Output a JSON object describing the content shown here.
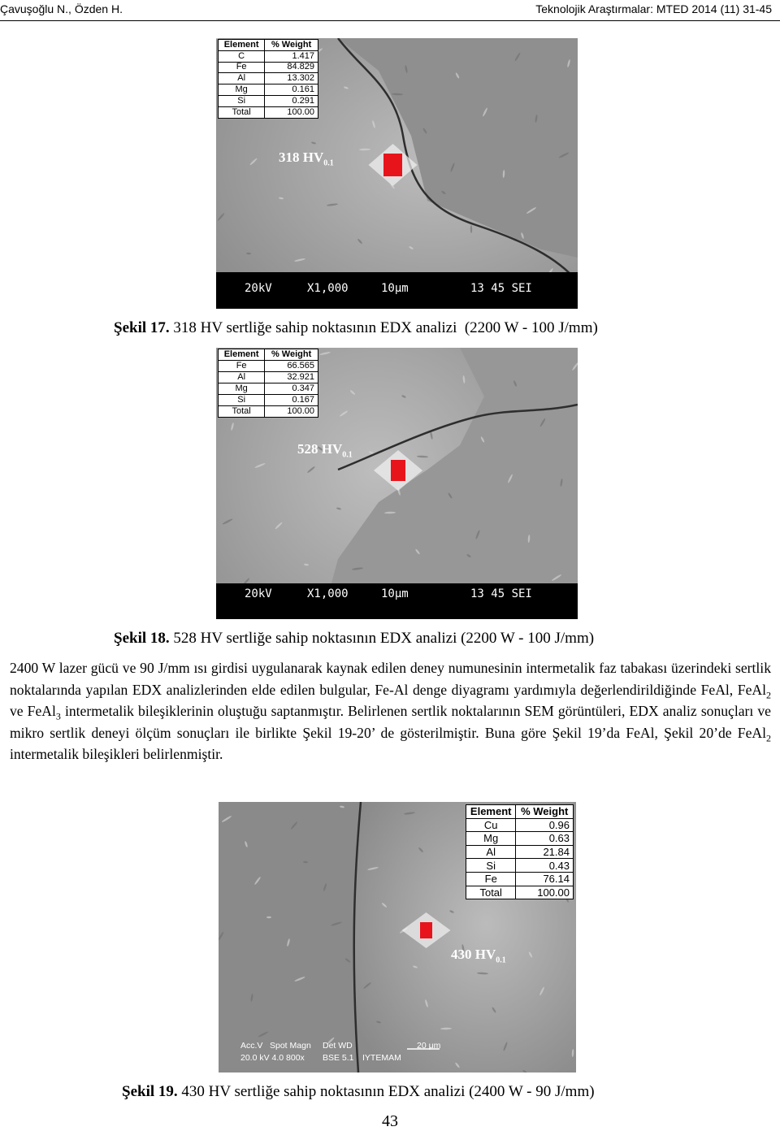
{
  "header": {
    "authors": "Çavuşoğlu N., Özden H.",
    "journal": "Teknolojik Araştırmalar: MTED 2014 (11) 31-45"
  },
  "figures": [
    {
      "table": {
        "header": [
          "Element",
          "% Weight"
        ],
        "rows": [
          [
            "C",
            "1.417"
          ],
          [
            "Fe",
            "84.829"
          ],
          [
            "Al",
            "13.302"
          ],
          [
            "Mg",
            "0.161"
          ],
          [
            "Si",
            "0.291"
          ],
          [
            "Total",
            "100.00"
          ]
        ]
      },
      "hardness": {
        "label": "318 HV",
        "subscript": "0.1"
      },
      "scale": [
        "20kV",
        "X1,000",
        "10μm",
        "13 45 SEI"
      ],
      "caption": {
        "label": "Şekil 17.",
        "text": "318 HV sertliğe sahip noktasının EDX analizi  (2200 W - 100 J/mm)"
      }
    },
    {
      "table": {
        "header": [
          "Element",
          "% Weight"
        ],
        "rows": [
          [
            "Fe",
            "66.565"
          ],
          [
            "Al",
            "32.921"
          ],
          [
            "Mg",
            "0.347"
          ],
          [
            "Si",
            "0.167"
          ],
          [
            "Total",
            "100.00"
          ]
        ]
      },
      "hardness": {
        "label": "528 HV",
        "subscript": "0.1"
      },
      "scale": [
        "20kV",
        "X1,000",
        "10μm",
        "13 45 SEI"
      ],
      "caption": {
        "label": "Şekil 18.",
        "text": "528 HV sertliğe sahip noktasının EDX analizi (2200 W - 100 J/mm)"
      }
    },
    {
      "table": {
        "header": [
          "Element",
          "% Weight"
        ],
        "rows": [
          [
            "Cu",
            "0.96"
          ],
          [
            "Mg",
            "0.63"
          ],
          [
            "Al",
            "21.84"
          ],
          [
            "Si",
            "0.43"
          ],
          [
            "Fe",
            "76.14"
          ],
          [
            "Total",
            "100.00"
          ]
        ]
      },
      "hardness": {
        "label": "430 HV",
        "subscript": "0.1"
      },
      "scale": [
        "Acc.V",
        "Spot Magn",
        "Det WD",
        "20 μm",
        "20.0 kV 4.0 800x",
        "BSE 5.1",
        "IYTEMAM"
      ],
      "caption": {
        "label": "Şekil 19.",
        "text": "430 HV sertliğe sahip noktasının EDX analizi (2400 W - 90 J/mm)"
      }
    }
  ],
  "paragraph": [
    "2400 W lazer gücü ve 90 J/mm ısı girdisi uygulanarak kaynak edilen deney numunesinin intermetalik faz tabakası üzerindeki sertlik noktalarında yapılan EDX analizlerinden elde edilen bulgular, Fe-Al denge diyagramı yardımıyla değerlendirildiğinde FeAl, FeAl",
    "2",
    " ve FeAl",
    "3",
    " intermetalik bileşiklerinin oluştuğu saptanmıştır. Belirlenen sertlik noktalarının SEM görüntüleri, EDX analiz sonuçları ve mikro sertlik deneyi ölçüm sonuçları ile birlikte Şekil 19-20’ de gösterilmiştir. Buna göre Şekil 19’da FeAl, Şekil 20’de FeAl",
    "2",
    " intermetalik bileşikleri belirlenmiştir."
  ],
  "page_number": "43"
}
